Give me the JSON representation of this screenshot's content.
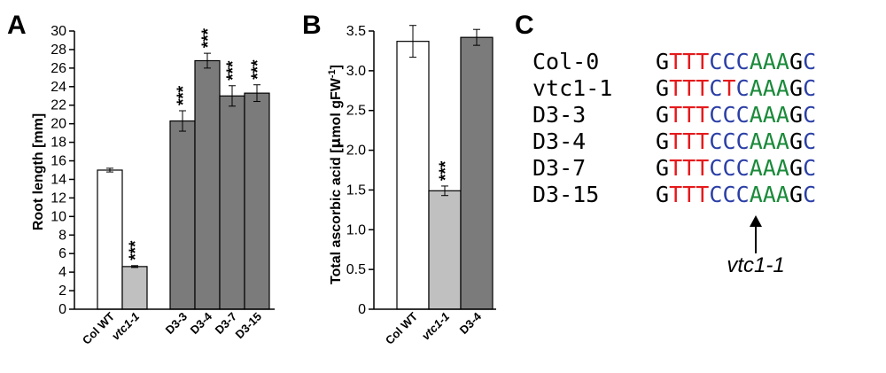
{
  "panels": {
    "A": "A",
    "B": "B",
    "C": "C"
  },
  "chart_data": [
    {
      "panel": "A",
      "type": "bar",
      "ylabel": "Root length [mm]",
      "ylim": [
        0,
        30
      ],
      "yticks": [
        0,
        2,
        4,
        6,
        8,
        10,
        12,
        14,
        16,
        18,
        20,
        22,
        24,
        26,
        28,
        30
      ],
      "grid": false,
      "categories": [
        "Col WT",
        "vtc1-1",
        "D3-3",
        "D3-4",
        "D3-7",
        "D3-15"
      ],
      "italic_categories": [
        "vtc1-1"
      ],
      "values": [
        15.0,
        4.6,
        20.3,
        26.8,
        23.0,
        23.3
      ],
      "errors": [
        0.2,
        0.1,
        1.1,
        0.8,
        1.1,
        0.9
      ],
      "significance": [
        "",
        "***",
        "***",
        "***",
        "***",
        "***"
      ],
      "colors": [
        "#ffffff",
        "#c0c0c0",
        "#7b7b7b",
        "#7b7b7b",
        "#7b7b7b",
        "#7b7b7b"
      ]
    },
    {
      "panel": "B",
      "type": "bar",
      "ylabel": "Total ascorbic acid [µmol gFW-1]",
      "ylabel_parts": [
        "Total ascorbic acid [",
        "μ",
        "mol gFW",
        "-1",
        "]"
      ],
      "ylim": [
        0,
        3.5
      ],
      "yticks": [
        "0",
        "0.5",
        "1.0",
        "1.5",
        "2.0",
        "2.5",
        "3.0",
        "3.5"
      ],
      "grid": false,
      "categories": [
        "Col WT",
        "vtc1-1",
        "D3-4"
      ],
      "italic_categories": [
        "vtc1-1"
      ],
      "values": [
        3.37,
        1.49,
        3.42
      ],
      "errors": [
        0.2,
        0.06,
        0.1
      ],
      "significance": [
        "",
        "***",
        ""
      ],
      "colors": [
        "#ffffff",
        "#c0c0c0",
        "#7b7b7b"
      ]
    }
  ],
  "sequences": {
    "rows": [
      {
        "name": "Col-0",
        "seq": "GTTTCCCAAAGC"
      },
      {
        "name": "vtc1-1",
        "seq": "GTTTCTCAAAGC"
      },
      {
        "name": "D3-3",
        "seq": "GTTTCCCAAAGC"
      },
      {
        "name": "D3-4",
        "seq": "GTTTCCCAAAGC"
      },
      {
        "name": "D3-7",
        "seq": "GTTTCCCAAAGC"
      },
      {
        "name": "D3-15",
        "seq": "GTTTCCCAAAGC"
      }
    ],
    "base_colors": {
      "G": "#000000",
      "T": "#e41a1c",
      "C": "#2b3fa6",
      "A": "#1a8a3a"
    },
    "mutation_label": "vtc1-1",
    "mutation_position_index": 5
  }
}
